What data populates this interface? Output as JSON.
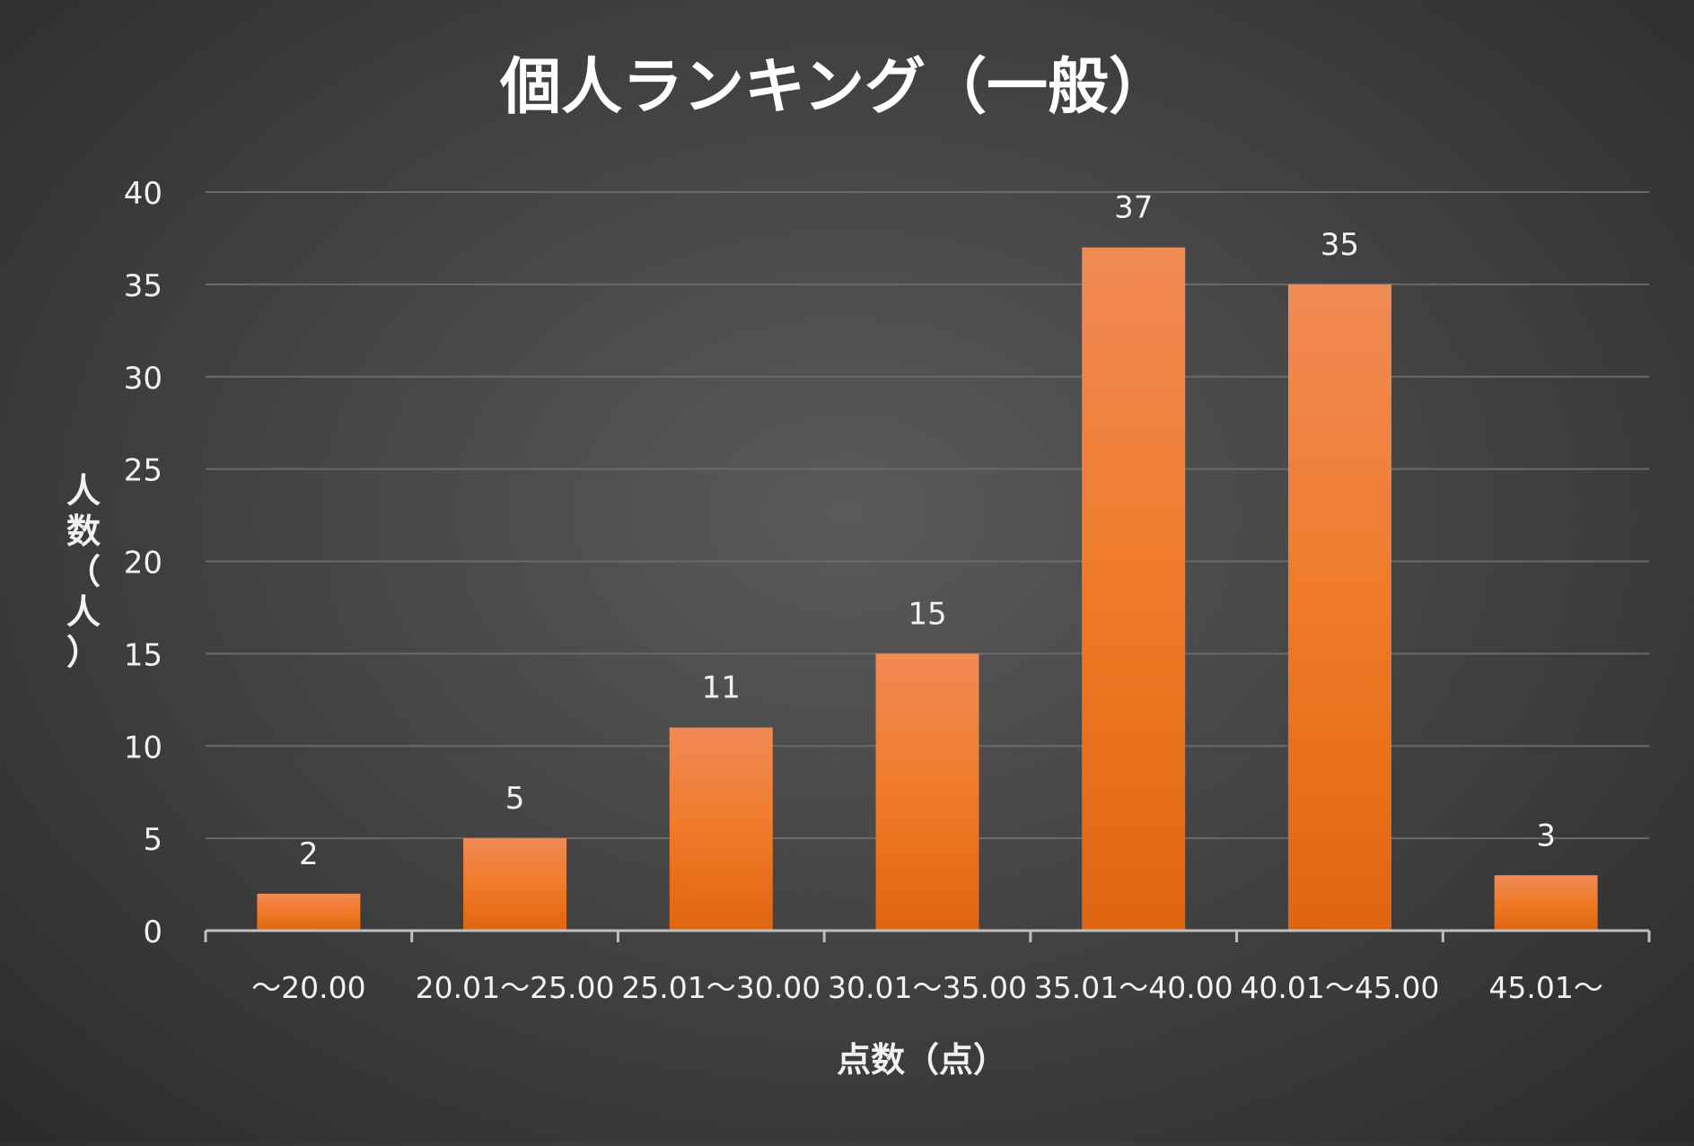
{
  "chart_data": {
    "type": "bar",
    "title": "個人ランキング（一般）",
    "xlabel": "点数（点）",
    "ylabel": "人数（人）",
    "categories": [
      "～20.00",
      "20.01～25.00",
      "25.01～30.00",
      "30.01～35.00",
      "35.01～40.00",
      "40.01～45.00",
      "45.01～"
    ],
    "values": [
      2,
      5,
      11,
      15,
      37,
      35,
      3
    ],
    "ylim": [
      0,
      40
    ],
    "yticks": [
      0,
      5,
      10,
      15,
      20,
      25,
      30,
      35,
      40
    ],
    "grid": true,
    "legend": "none",
    "data_labels": true,
    "colors": {
      "bar_top": "#f08a55",
      "bar_mid": "#f07a28",
      "bar_bottom": "#e06510",
      "text": "#f2f2f2",
      "title": "#ffffff",
      "gridline": "#6a6a6a",
      "axis": "#bfbfbf"
    }
  }
}
